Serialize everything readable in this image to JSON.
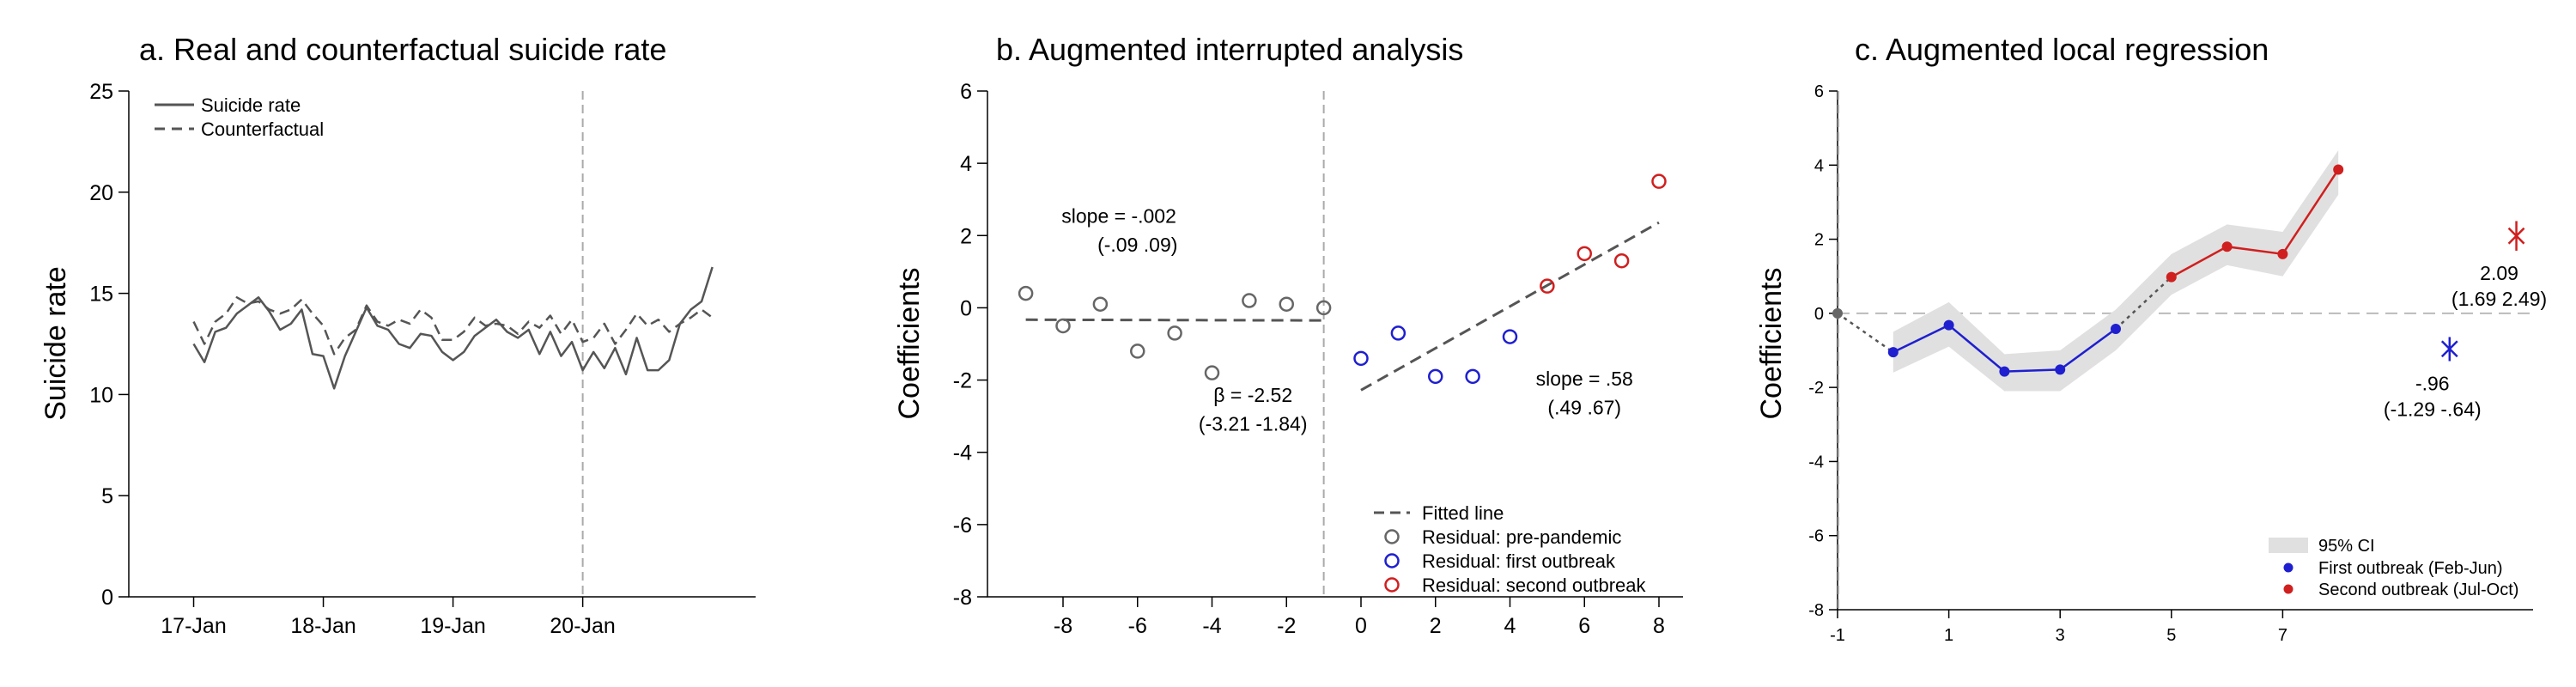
{
  "chart_data": [
    {
      "type": "line",
      "title": "a. Real and counterfactual suicide rate",
      "ylabel": "Suicide rate",
      "xlabel": "",
      "ylim": [
        0,
        25
      ],
      "yticks": [
        0,
        5,
        10,
        15,
        20,
        25
      ],
      "x_range": [
        -6,
        52
      ],
      "xticks": [
        {
          "x": 0,
          "label": "17-Jan"
        },
        {
          "x": 12,
          "label": "18-Jan"
        },
        {
          "x": 24,
          "label": "19-Jan"
        },
        {
          "x": 36,
          "label": "20-Jan"
        }
      ],
      "vline_x": 36,
      "legend_position": "top-left",
      "series": [
        {
          "name": "Suicide rate",
          "style": "solid",
          "color": "#555555",
          "values": [
            12.5,
            11.6,
            13.1,
            13.3,
            14.0,
            14.4,
            14.8,
            14.1,
            13.2,
            13.5,
            14.2,
            12.0,
            11.9,
            10.3,
            11.9,
            13.1,
            14.3,
            13.4,
            13.2,
            12.5,
            12.3,
            13.0,
            12.9,
            12.1,
            11.7,
            12.1,
            12.9,
            13.3,
            13.7,
            13.1,
            12.8,
            13.2,
            12.0,
            13.1,
            11.9,
            12.6,
            11.2,
            12.1,
            11.3,
            12.3,
            11.0,
            12.8,
            11.2,
            11.2,
            11.7,
            13.5,
            14.2,
            14.6,
            16.3
          ]
        },
        {
          "name": "Counterfactual",
          "style": "dashed",
          "color": "#555555",
          "values": [
            13.6,
            12.5,
            13.6,
            14.0,
            14.8,
            14.5,
            14.6,
            14.2,
            14.0,
            14.2,
            14.7,
            14.0,
            13.4,
            12.0,
            12.8,
            13.2,
            14.4,
            13.6,
            13.4,
            13.7,
            13.5,
            14.2,
            13.8,
            12.7,
            12.7,
            13.1,
            13.8,
            13.4,
            13.5,
            13.4,
            13.0,
            13.6,
            13.3,
            13.9,
            13.0,
            13.7,
            12.6,
            12.8,
            13.5,
            12.5,
            13.2,
            14.0,
            13.4,
            13.7,
            13.1,
            13.5,
            13.8,
            14.2,
            13.8
          ]
        }
      ]
    },
    {
      "type": "scatter",
      "title": "b. Augmented interrupted analysis",
      "ylabel": "Coefficients",
      "xlabel": "",
      "xlim": [
        -9.5,
        8.5
      ],
      "ylim": [
        -8,
        6
      ],
      "xticks": [
        -8,
        -6,
        -4,
        -2,
        0,
        2,
        4,
        6,
        8
      ],
      "yticks": [
        -8,
        -6,
        -4,
        -2,
        0,
        2,
        4,
        6
      ],
      "vline_x": -1,
      "legend_position": "bottom-right",
      "series": [
        {
          "name": "Residual: pre-pandemic",
          "color": "#666666",
          "points": [
            [
              -9,
              0.4
            ],
            [
              -8,
              -0.5
            ],
            [
              -7,
              0.1
            ],
            [
              -6,
              -1.2
            ],
            [
              -5,
              -0.7
            ],
            [
              -4,
              -1.8
            ],
            [
              -3,
              0.2
            ],
            [
              -2,
              0.1
            ],
            [
              -1,
              0.0
            ]
          ]
        },
        {
          "name": "Residual: first outbreak",
          "color": "#1f1fd0",
          "points": [
            [
              0,
              -1.4
            ],
            [
              1,
              -0.7
            ],
            [
              2,
              -1.9
            ],
            [
              3,
              -1.9
            ],
            [
              4,
              -0.8
            ]
          ]
        },
        {
          "name": "Residual: second outbreak",
          "color": "#d01f1f",
          "points": [
            [
              5,
              0.6
            ],
            [
              6,
              1.5
            ],
            [
              7,
              1.3
            ],
            [
              8,
              3.5
            ]
          ]
        }
      ],
      "fitted_lines": [
        {
          "name": "Fitted line",
          "x": [
            -9,
            -1
          ],
          "y": [
            -0.33,
            -0.35
          ]
        },
        {
          "name": "Fitted line",
          "x": [
            0,
            8
          ],
          "y": [
            -2.28,
            2.36
          ]
        }
      ],
      "annotations": [
        {
          "text": "slope = -.002",
          "x": -6.5,
          "y": 2.35
        },
        {
          "text": "(-.09 .09)",
          "x": -6.0,
          "y": 1.55
        },
        {
          "text": "β = -2.52",
          "x": -2.9,
          "y": -2.6
        },
        {
          "text": "(-3.21 -1.84)",
          "x": -2.9,
          "y": -3.4
        },
        {
          "text": "slope = .58",
          "x": 6.0,
          "y": -2.15
        },
        {
          "text": "(.49 .67)",
          "x": 6.0,
          "y": -2.95
        }
      ]
    },
    {
      "type": "line",
      "title": "c.  Augmented local regression",
      "ylabel": "Coefficients",
      "xlabel": "",
      "xlim": [
        -1,
        11.5
      ],
      "ylim": [
        -8,
        6
      ],
      "xticks": [
        -1,
        1,
        3,
        5,
        7
      ],
      "yticks": [
        -8,
        -6,
        -4,
        -2,
        0,
        2,
        4,
        6
      ],
      "vline_x": -1,
      "legend_position": "bottom-right",
      "ci_band": {
        "name": "95% CI",
        "x": [
          0,
          1,
          2,
          3,
          4,
          5,
          6,
          7,
          8
        ],
        "lower": [
          -1.6,
          -0.9,
          -2.1,
          -2.1,
          -1.0,
          0.5,
          1.3,
          1.0,
          3.2
        ],
        "upper": [
          -0.5,
          0.3,
          -1.1,
          -1.0,
          0.1,
          1.6,
          2.4,
          2.2,
          4.4
        ]
      },
      "baseline_point": {
        "x": -1,
        "y": 0
      },
      "series": [
        {
          "name": "First outbreak (Feb-Jun)",
          "color": "#1f1fd0",
          "x": [
            0,
            1,
            2,
            3,
            4
          ],
          "values": [
            -1.05,
            -0.32,
            -1.57,
            -1.52,
            -0.42
          ]
        },
        {
          "name": "Second outbreak (Jul-Oct)",
          "color": "#d01f1f",
          "x": [
            5,
            6,
            7,
            8
          ],
          "values": [
            0.98,
            1.8,
            1.6,
            3.88
          ]
        }
      ],
      "error_points": [
        {
          "x": 10,
          "y": -0.96,
          "low": -1.29,
          "high": -0.64,
          "color": "#1f1fd0",
          "label": "-.96",
          "ci_label": "(-1.29 -.64)"
        },
        {
          "x": 11.2,
          "y": 2.09,
          "low": 1.69,
          "high": 2.49,
          "color": "#d01f1f",
          "label": "2.09",
          "ci_label": "(1.69 2.49)"
        }
      ]
    }
  ]
}
